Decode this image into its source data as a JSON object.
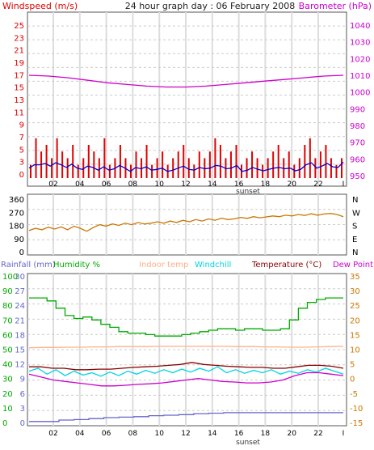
{
  "title": "24 hour graph day : 06 February 2008",
  "colors": {
    "wind_avg": "#0000cc",
    "wind_gust": "#e00000",
    "barometer": "#cc00cc",
    "direction": "#cc7700",
    "rainfall": "#6666cc",
    "humidity": "#00aa00",
    "indoor": "#ffb08a",
    "windchill": "#00d5e0",
    "temperature": "#880000",
    "dewpoint": "#cc00cc",
    "frame": "#555555",
    "grid": "#dddddd"
  },
  "x_ticks": [
    "02",
    "04",
    "06",
    "08",
    "10",
    "12",
    "14",
    "16",
    "18",
    "20",
    "22"
  ],
  "x_end_tick": "I",
  "x_marker": "sunset",
  "chart_data": [
    {
      "type": "line",
      "name": "wind",
      "left_label": "Windspeed (m/s)",
      "right_label": "Barometer (hPa)",
      "left_ticks": [
        "25",
        "23",
        "21",
        "19",
        "17",
        "15",
        "13",
        "11",
        "9",
        "7",
        "5",
        "3",
        "0"
      ],
      "right_ticks": [
        "1040",
        "1030",
        "1020",
        "1010",
        "1000",
        "990",
        "980",
        "970",
        "960",
        "950"
      ],
      "ylim_left": [
        0,
        25
      ],
      "ylim_right": [
        950,
        1040
      ],
      "series": [
        {
          "key": "gust",
          "values": [
            2,
            6,
            4,
            5,
            3,
            6,
            4,
            3,
            5,
            2,
            3,
            5,
            4,
            3,
            6,
            2,
            3,
            5,
            3,
            2,
            4,
            3,
            5,
            2,
            3,
            4,
            2,
            3,
            4,
            5,
            3,
            2,
            4,
            3,
            4,
            6,
            5,
            3,
            4,
            5,
            2,
            3,
            4,
            3,
            2,
            3,
            4,
            5,
            3,
            4,
            2,
            3,
            5,
            6,
            3,
            4,
            5,
            3,
            2,
            3
          ]
        },
        {
          "key": "avg",
          "values": [
            1.5,
            2,
            2,
            2.2,
            1.8,
            2.3,
            2,
            1.6,
            2.1,
            1.5,
            1.3,
            1.8,
            1.6,
            1.2,
            1.7,
            1.2,
            1.4,
            1.9,
            1.5,
            1,
            1.6,
            1.4,
            1.7,
            1.2,
            1.3,
            1.5,
            1,
            1.2,
            1.5,
            1.8,
            1.3,
            1.2,
            1.6,
            1.4,
            1.5,
            1.9,
            1.8,
            1.4,
            1.5,
            1.9,
            1,
            1.2,
            1.6,
            1.3,
            1.1,
            1.3,
            1.5,
            1.6,
            1.4,
            1.5,
            1.1,
            1.3,
            2,
            2.3,
            1.5,
            1.8,
            2.2,
            1.7,
            1.6,
            2.4
          ]
        },
        {
          "key": "baro",
          "axis": "right",
          "values": [
            1010,
            1009.5,
            1008.5,
            1007,
            1005.5,
            1004.5,
            1003.5,
            1003,
            1003,
            1003.5,
            1004.5,
            1005.5,
            1006.5,
            1007.5,
            1008.5,
            1009.5,
            1010
          ]
        }
      ]
    },
    {
      "type": "line",
      "name": "direction",
      "left_ticks": [
        "360",
        "270",
        "180",
        "90",
        "0"
      ],
      "right_ticks": [
        "N",
        "W",
        "S",
        "E",
        "N"
      ],
      "ylim": [
        0,
        360
      ],
      "series": [
        {
          "key": "dir",
          "values": [
            145,
            160,
            150,
            168,
            155,
            170,
            150,
            175,
            160,
            140,
            165,
            185,
            175,
            190,
            180,
            195,
            185,
            200,
            190,
            195,
            205,
            195,
            210,
            200,
            215,
            205,
            220,
            210,
            225,
            215,
            230,
            220,
            225,
            235,
            228,
            240,
            232,
            238,
            245,
            240,
            250,
            245,
            255,
            248,
            260,
            250,
            258,
            262,
            255,
            240
          ]
        }
      ]
    },
    {
      "type": "line",
      "name": "temperature",
      "legend": [
        "Rainfall (mm)",
        "Humidity %",
        "Indoor temp",
        "Windchill",
        "Temperature (°C)",
        "Dew Point"
      ],
      "ticks_rain": [
        "30",
        "27",
        "24",
        "21",
        "18",
        "15",
        "12",
        "9",
        "6",
        "3",
        "0"
      ],
      "ticks_humidity": [
        "100",
        "90",
        "80",
        "70",
        "60",
        "50",
        "40",
        "30",
        "20",
        "10",
        "0"
      ],
      "ticks_temp": [
        "35",
        "30",
        "25",
        "20",
        "15",
        "10",
        "5",
        "0",
        "-5",
        "-10",
        "-15"
      ],
      "ylim_temp": [
        -15,
        35
      ],
      "ylim_humidity": [
        0,
        100
      ],
      "ylim_rain": [
        0,
        30
      ],
      "series": [
        {
          "key": "humidity",
          "axis": "humidity",
          "values": [
            85,
            85,
            83,
            78,
            73,
            71,
            72,
            70,
            67,
            65,
            62,
            61,
            61,
            60,
            59,
            59,
            59,
            60,
            61,
            62,
            63,
            64,
            64,
            63,
            64,
            64,
            63,
            63,
            64,
            70,
            78,
            82,
            84,
            85,
            85
          ]
        },
        {
          "key": "indoor",
          "axis": "temp",
          "values": [
            10.5,
            10.6,
            10.6,
            10.7,
            10.7,
            10.8,
            10.8,
            10.9,
            10.9,
            10.9,
            11,
            11,
            11,
            11,
            11,
            11,
            10.9,
            10.9,
            10.8,
            10.8,
            10.7,
            10.7,
            10.8,
            10.9,
            11
          ]
        },
        {
          "key": "temp",
          "axis": "temp",
          "values": [
            4,
            4,
            3.5,
            3.5,
            3,
            3,
            3.2,
            3.2,
            3.5,
            3.8,
            4,
            4.2,
            4.5,
            4.8,
            5.5,
            4.8,
            4.5,
            4.2,
            4,
            3.8,
            3.8,
            3.5,
            3.5,
            4,
            4.5,
            4.5,
            4.2,
            3.5
          ]
        },
        {
          "key": "windchill",
          "axis": "temp",
          "values": [
            2.5,
            3.5,
            1.5,
            3,
            1,
            2.5,
            1.2,
            2,
            0.8,
            2.2,
            1,
            2.5,
            1.5,
            2.8,
            1.8,
            3,
            2,
            3.2,
            2.2,
            3.5,
            2.5,
            4,
            2,
            3,
            1.8,
            2.8,
            2,
            3,
            1.5,
            2.5,
            1.8,
            3,
            2.2,
            3.5,
            2.5,
            1.5
          ]
        },
        {
          "key": "dewpoint",
          "axis": "temp",
          "values": [
            1.5,
            0.5,
            -0.5,
            -1,
            -1.5,
            -2,
            -2.5,
            -2.5,
            -2.3,
            -2,
            -1.8,
            -1.5,
            -1,
            -0.5,
            0,
            -0.5,
            -1,
            -1.2,
            -1.5,
            -1.5,
            -1.2,
            -0.5,
            1,
            2,
            2,
            1.5,
            1
          ]
        },
        {
          "key": "rain",
          "axis": "rain",
          "values": [
            0.2,
            0.2,
            0.5,
            0.6,
            0.8,
            1,
            1.1,
            1.2,
            1.4,
            1.5,
            1.6,
            1.8,
            1.9,
            2,
            2,
            2,
            2,
            2,
            2,
            2,
            2
          ]
        }
      ]
    }
  ]
}
